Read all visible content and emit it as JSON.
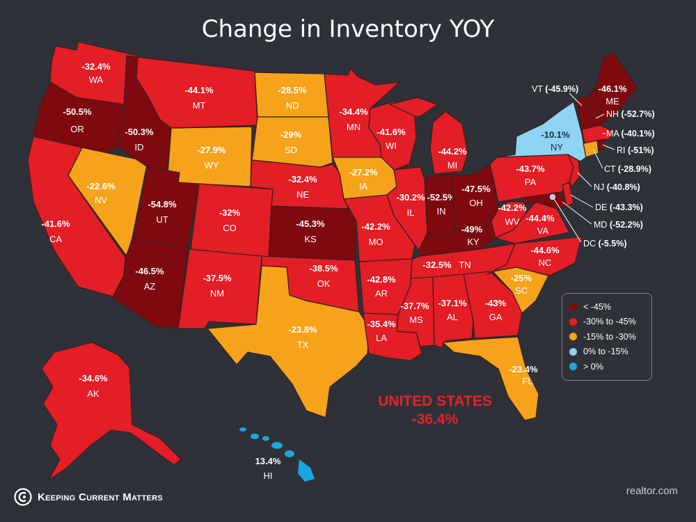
{
  "title": "Change in Inventory YOY",
  "colors": {
    "lt45": "#7e0a0f",
    "r30_45": "#e31e26",
    "r15_30": "#f6a31b",
    "r0_15": "#8fd3f5",
    "gt0": "#1ea4e0",
    "background": "#2e3238"
  },
  "states": {
    "WA": {
      "abbr": "WA",
      "pct": "-32.4%"
    },
    "OR": {
      "abbr": "OR",
      "pct": "-50.5%"
    },
    "CA": {
      "abbr": "CA",
      "pct": "-41.6%"
    },
    "ID": {
      "abbr": "ID",
      "pct": "-50.3%"
    },
    "NV": {
      "abbr": "NV",
      "pct": "-22.6%"
    },
    "MT": {
      "abbr": "MT",
      "pct": "-44.1%"
    },
    "WY": {
      "abbr": "WY",
      "pct": "-27.9%"
    },
    "UT": {
      "abbr": "UT",
      "pct": "-54.8%"
    },
    "AZ": {
      "abbr": "AZ",
      "pct": "-46.5%"
    },
    "CO": {
      "abbr": "CO",
      "pct": "-32%"
    },
    "NM": {
      "abbr": "NM",
      "pct": "-37.5%"
    },
    "ND": {
      "abbr": "ND",
      "pct": "-28.5%"
    },
    "SD": {
      "abbr": "SD",
      "pct": "-29%"
    },
    "NE": {
      "abbr": "NE",
      "pct": "-32.4%"
    },
    "KS": {
      "abbr": "KS",
      "pct": "-45.3%"
    },
    "OK": {
      "abbr": "OK",
      "pct": "-38.5%"
    },
    "TX": {
      "abbr": "TX",
      "pct": "-23.8%"
    },
    "MN": {
      "abbr": "MN",
      "pct": "-34.4%"
    },
    "IA": {
      "abbr": "IA",
      "pct": "-27.2%"
    },
    "MO": {
      "abbr": "MO",
      "pct": "-42.2%"
    },
    "AR": {
      "abbr": "AR",
      "pct": "-42.8%"
    },
    "LA": {
      "abbr": "LA",
      "pct": "-35.4%"
    },
    "WI": {
      "abbr": "WI",
      "pct": "-41.6%"
    },
    "IL": {
      "abbr": "IL",
      "pct": "-30.2%"
    },
    "MI": {
      "abbr": "MI",
      "pct": "-44.2%"
    },
    "IN": {
      "abbr": "IN",
      "pct": "-52.5%"
    },
    "OH": {
      "abbr": "OH",
      "pct": "-47.5%"
    },
    "KY": {
      "abbr": "KY",
      "pct": "-49%"
    },
    "TN": {
      "abbr": "TN",
      "pct": "-32.5%"
    },
    "MS": {
      "abbr": "MS",
      "pct": "-37.7%"
    },
    "AL": {
      "abbr": "AL",
      "pct": "-37.1%"
    },
    "GA": {
      "abbr": "GA",
      "pct": "-43%"
    },
    "FL": {
      "abbr": "FL",
      "pct": "-23.4%"
    },
    "SC": {
      "abbr": "SC",
      "pct": "-25%"
    },
    "NC": {
      "abbr": "NC",
      "pct": "-44.6%"
    },
    "VA": {
      "abbr": "VA",
      "pct": "-44.4%"
    },
    "WV": {
      "abbr": "WV",
      "pct": "-42.2%"
    },
    "PA": {
      "abbr": "PA",
      "pct": "-43.7%"
    },
    "NY": {
      "abbr": "NY",
      "pct": "-10.1%"
    },
    "ME": {
      "abbr": "ME",
      "pct": "-46.1%"
    },
    "AK": {
      "abbr": "AK",
      "pct": "-34.6%"
    },
    "HI": {
      "abbr": "HI",
      "pct": "13.4%"
    }
  },
  "external_labels": {
    "VT": {
      "abbr": "VT",
      "pct": "(-45.9%)"
    },
    "NH": {
      "abbr": "NH",
      "pct": "(-52.7%)"
    },
    "MA": {
      "abbr": "MA",
      "pct": "(-40.1%)"
    },
    "RI": {
      "abbr": "RI",
      "pct": "(-51%)"
    },
    "CT": {
      "abbr": "CT",
      "pct": "(-28.9%)"
    },
    "NJ": {
      "abbr": "NJ",
      "pct": "(-40.8%)"
    },
    "DE": {
      "abbr": "DE",
      "pct": "(-43.3%)"
    },
    "MD": {
      "abbr": "MD",
      "pct": "(-52.2%)"
    },
    "DC": {
      "abbr": "DC",
      "pct": "(-5.5%)"
    }
  },
  "legend": [
    {
      "label": "< -45%",
      "color": "#7e0a0f"
    },
    {
      "label": "-30% to -45%",
      "color": "#e31e26"
    },
    {
      "label": "-15% to -30%",
      "color": "#f6a31b"
    },
    {
      "label": "0% to -15%",
      "color": "#8fd3f5"
    },
    {
      "label": "> 0%",
      "color": "#1ea4e0"
    }
  ],
  "national": {
    "name": "UNITED STATES",
    "pct": "-36.4%"
  },
  "brand": {
    "name": "Keeping Current Matters"
  },
  "source": "realtor.com"
}
